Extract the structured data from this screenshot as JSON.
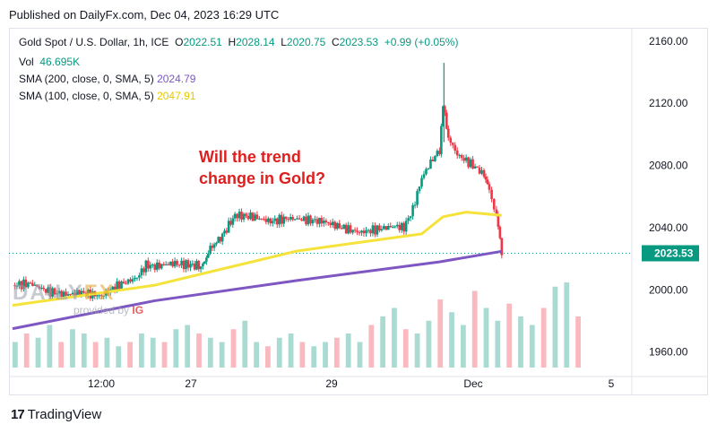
{
  "header": {
    "published": "Published on DailyFx.com, Dec 04, 2023 16:29 UTC"
  },
  "legend": {
    "symbol": "Gold Spot / U.S. Dollar, 1h, ICE",
    "open_label": "O",
    "open": "2022.51",
    "high_label": "H",
    "high": "2028.14",
    "low_label": "L",
    "low": "2020.75",
    "close_label": "C",
    "close": "2023.53",
    "change": "+0.99 (+0.05%)",
    "vol_label": "Vol",
    "vol": "46.695K",
    "sma200_label": "SMA (200, close, 0, SMA, 5)",
    "sma200": "2024.79",
    "sma100_label": "SMA (100, close, 0, SMA, 5)",
    "sma100": "2047.91"
  },
  "annotation": {
    "text": "Will the trend\nchange in Gold?"
  },
  "watermark": {
    "brand_a": "DAILY",
    "brand_b": "FX",
    "provided": "provided by",
    "ig": "IG"
  },
  "footer": {
    "logo_mark": "17",
    "logo_text": "TradingView"
  },
  "colors": {
    "up": "#089981",
    "down": "#f23645",
    "sma200": "#7e57c2",
    "sma100": "#f5e23a",
    "price_tag": "#089981",
    "annotation": "#e01e1e"
  },
  "chart_data": {
    "type": "candlestick",
    "title": "Gold Spot / U.S. Dollar, 1h, ICE",
    "y_ticks": [
      1960,
      2000,
      2040,
      2080,
      2120,
      2160
    ],
    "y_tick_labels": [
      "1960.00",
      "2000.00",
      "2040.00",
      "2080.00",
      "2120.00",
      "2160.00"
    ],
    "ylim": [
      1950,
      2168
    ],
    "x_tick_labels": [
      "12:00",
      "27",
      "29",
      "Dec",
      "5"
    ],
    "last_price": 2023.53,
    "last_price_label": "2023.53",
    "price_path": [
      [
        0,
        2003
      ],
      [
        10,
        2004
      ],
      [
        20,
        1999
      ],
      [
        30,
        1997
      ],
      [
        40,
        1998
      ],
      [
        50,
        1996
      ],
      [
        55,
        2000
      ],
      [
        60,
        2003
      ],
      [
        70,
        2008
      ],
      [
        75,
        2016
      ],
      [
        80,
        2015
      ],
      [
        90,
        2017
      ],
      [
        100,
        2016
      ],
      [
        107,
        2015
      ],
      [
        110,
        2025
      ],
      [
        118,
        2035
      ],
      [
        125,
        2048
      ],
      [
        135,
        2047
      ],
      [
        145,
        2044
      ],
      [
        155,
        2046
      ],
      [
        165,
        2045
      ],
      [
        175,
        2044
      ],
      [
        185,
        2040
      ],
      [
        195,
        2037
      ],
      [
        205,
        2039
      ],
      [
        215,
        2041
      ],
      [
        220,
        2040
      ],
      [
        225,
        2052
      ],
      [
        230,
        2072
      ],
      [
        235,
        2082
      ],
      [
        240,
        2090
      ],
      [
        242,
        2118
      ],
      [
        245,
        2098
      ],
      [
        250,
        2087
      ],
      [
        255,
        2083
      ],
      [
        260,
        2079
      ],
      [
        265,
        2074
      ],
      [
        268,
        2063
      ],
      [
        272,
        2048
      ],
      [
        275,
        2023
      ]
    ],
    "sma200": [
      [
        0,
        1975
      ],
      [
        80,
        1993
      ],
      [
        160,
        2006
      ],
      [
        240,
        2018
      ],
      [
        275,
        2024.79
      ]
    ],
    "sma100": [
      [
        0,
        1990
      ],
      [
        80,
        2003
      ],
      [
        160,
        2025
      ],
      [
        230,
        2036
      ],
      [
        242,
        2047
      ],
      [
        255,
        2050
      ],
      [
        275,
        2047.91
      ]
    ],
    "volume_rel": [
      0.3,
      0.4,
      0.35,
      0.5,
      0.3,
      0.45,
      0.4,
      0.3,
      0.35,
      0.25,
      0.3,
      0.4,
      0.35,
      0.3,
      0.45,
      0.5,
      0.4,
      0.35,
      0.3,
      0.45,
      0.55,
      0.3,
      0.25,
      0.35,
      0.4,
      0.3,
      0.25,
      0.3,
      0.35,
      0.4,
      0.3,
      0.5,
      0.6,
      0.7,
      0.45,
      0.4,
      0.55,
      0.8,
      0.65,
      0.5,
      0.9,
      0.7,
      0.55,
      0.75,
      0.6,
      0.5,
      0.7,
      0.95,
      1.0,
      0.6
    ]
  }
}
